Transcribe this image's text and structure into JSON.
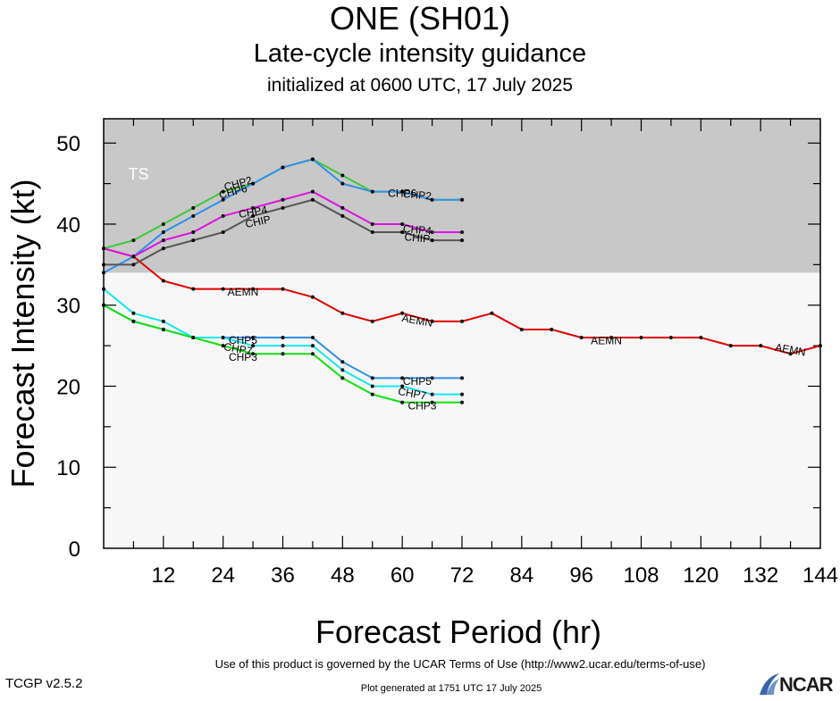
{
  "title": "ONE (SH01)",
  "subtitle": "Late-cycle intensity guidance",
  "subtitle2": "initialized at 0600 UTC, 17 July 2025",
  "footer": {
    "terms": "Use of this product is governed by the UCAR Terms of Use (http://www2.ucar.edu/terms-of-use)",
    "version": "TCGP v2.5.2",
    "generated": "Plot generated at 1751 UTC   17 July 2025",
    "logo": "NCAR"
  },
  "colors": {
    "ts_band": "#c8c8c8",
    "below_band": "#f7f7f7",
    "AEMN": "#e00000",
    "CHP2": "#3cc83c",
    "CHP6": "#2f8fe8",
    "CHP4": "#e010e0",
    "CHIP": "#555555",
    "CHP5": "#2f8fe8",
    "CHP7": "#10e8f0",
    "CHP3": "#10e010"
  },
  "chart_data": {
    "type": "line",
    "xlabel": "Forecast Period (hr)",
    "ylabel": "Forecast Intensity (kt)",
    "xlim": [
      0,
      144
    ],
    "ylim": [
      0,
      53
    ],
    "xticks": [
      12,
      24,
      36,
      48,
      60,
      72,
      84,
      96,
      108,
      120,
      132,
      144
    ],
    "yticks": [
      0,
      10,
      20,
      30,
      40,
      50
    ],
    "bands": [
      {
        "label": "TS",
        "from": 34,
        "to": 53
      }
    ],
    "series": [
      {
        "name": "AEMN",
        "x": [
          0,
          6,
          12,
          18,
          24,
          30,
          36,
          42,
          48,
          54,
          60,
          66,
          72,
          78,
          84,
          90,
          96,
          102,
          108,
          114,
          120,
          126,
          132,
          138,
          144
        ],
        "y": [
          37,
          36,
          33,
          32,
          32,
          32,
          32,
          31,
          29,
          28,
          29,
          28,
          28,
          29,
          27,
          27,
          26,
          26,
          26,
          26,
          26,
          25,
          25,
          24,
          25
        ]
      },
      {
        "name": "CHP2",
        "x": [
          0,
          6,
          12,
          18,
          24,
          30,
          36,
          42,
          48,
          54,
          60,
          66,
          72
        ],
        "y": [
          37,
          38,
          40,
          42,
          44,
          45,
          47,
          48,
          46,
          44,
          44,
          43,
          43
        ]
      },
      {
        "name": "CHP6",
        "x": [
          0,
          6,
          12,
          18,
          24,
          30,
          36,
          42,
          48,
          54,
          60,
          66,
          72
        ],
        "y": [
          34,
          36,
          39,
          41,
          43,
          45,
          47,
          48,
          45,
          44,
          44,
          43,
          43
        ]
      },
      {
        "name": "CHP4",
        "x": [
          0,
          6,
          12,
          18,
          24,
          30,
          36,
          42,
          48,
          54,
          60,
          66,
          72
        ],
        "y": [
          37,
          36,
          38,
          39,
          41,
          42,
          43,
          44,
          42,
          40,
          40,
          39,
          39
        ]
      },
      {
        "name": "CHIP",
        "x": [
          0,
          6,
          12,
          18,
          24,
          30,
          36,
          42,
          48,
          54,
          60,
          66,
          72
        ],
        "y": [
          35,
          35,
          37,
          38,
          39,
          41,
          42,
          43,
          41,
          39,
          39,
          38,
          38
        ]
      },
      {
        "name": "CHP5",
        "x": [
          0,
          6,
          12,
          18,
          24,
          30,
          36,
          42,
          48,
          54,
          60,
          66,
          72
        ],
        "y": [
          30,
          28,
          27,
          26,
          26,
          26,
          26,
          26,
          23,
          21,
          21,
          21,
          21
        ]
      },
      {
        "name": "CHP7",
        "x": [
          0,
          6,
          12,
          18,
          24,
          30,
          36,
          42,
          48,
          54,
          60,
          66,
          72
        ],
        "y": [
          32,
          29,
          28,
          26,
          26,
          25,
          25,
          25,
          22,
          20,
          20,
          19,
          19
        ]
      },
      {
        "name": "CHP3",
        "x": [
          0,
          6,
          12,
          18,
          24,
          30,
          36,
          42,
          48,
          54,
          60,
          66,
          72
        ],
        "y": [
          30,
          28,
          27,
          26,
          25,
          24,
          24,
          24,
          21,
          19,
          18,
          18,
          18
        ]
      }
    ],
    "labels": [
      {
        "text": "CHP2",
        "series": "CHP2",
        "x": 27,
        "y": 45,
        "rot": -15
      },
      {
        "text": "CHP6",
        "series": "CHP6",
        "x": 26,
        "y": 44,
        "rot": -15
      },
      {
        "text": "CHP4",
        "series": "CHP4",
        "x": 30,
        "y": 41.5,
        "rot": -10
      },
      {
        "text": "CHIP",
        "series": "CHIP",
        "x": 31,
        "y": 40.3,
        "rot": -12
      },
      {
        "text": "CHP2",
        "series": "CHP2",
        "x": 63,
        "y": 43.6,
        "rot": 5
      },
      {
        "text": "CHP6",
        "series": "CHP6",
        "x": 60,
        "y": 43.8,
        "rot": 0
      },
      {
        "text": "CHP4",
        "series": "CHP4",
        "x": 63,
        "y": 39.3,
        "rot": 5
      },
      {
        "text": "CHIP",
        "series": "CHIP",
        "x": 63,
        "y": 38.3,
        "rot": 5
      },
      {
        "text": "AEMN",
        "series": "AEMN",
        "x": 28,
        "y": 31.6,
        "rot": 0
      },
      {
        "text": "AEMN",
        "series": "AEMN",
        "x": 63,
        "y": 28.1,
        "rot": 10
      },
      {
        "text": "AEMN",
        "series": "AEMN",
        "x": 101,
        "y": 25.6,
        "rot": 0
      },
      {
        "text": "AEMN",
        "series": "AEMN",
        "x": 138,
        "y": 24.5,
        "rot": 10
      },
      {
        "text": "CHP5",
        "series": "CHP5",
        "x": 28,
        "y": 25.7,
        "rot": 0
      },
      {
        "text": "CHP7",
        "series": "CHP7",
        "x": 27,
        "y": 24.6,
        "rot": 10
      },
      {
        "text": "CHP3",
        "series": "CHP3",
        "x": 28,
        "y": 23.6,
        "rot": 0
      },
      {
        "text": "CHP5",
        "series": "CHP5",
        "x": 63,
        "y": 20.6,
        "rot": 0
      },
      {
        "text": "CHP7",
        "series": "CHP7",
        "x": 62,
        "y": 19.1,
        "rot": 10
      },
      {
        "text": "CHP3",
        "series": "CHP3",
        "x": 64,
        "y": 17.6,
        "rot": 0
      }
    ]
  }
}
